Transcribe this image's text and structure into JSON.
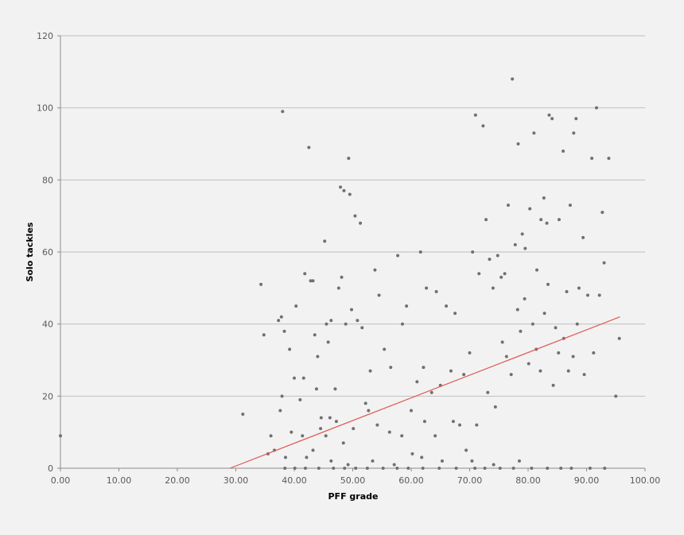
{
  "chart_data": {
    "type": "scatter",
    "title": "",
    "xlabel": "PFF grade",
    "ylabel": "Solo tackles",
    "xlim": [
      0,
      100
    ],
    "ylim": [
      0,
      120
    ],
    "x_ticks": [
      "0.00",
      "10.00",
      "20.00",
      "30.00",
      "40.00",
      "50.00",
      "60.00",
      "70.00",
      "80.00",
      "90.00",
      "100.00"
    ],
    "y_ticks": [
      "0",
      "20",
      "40",
      "60",
      "80",
      "100",
      "120"
    ],
    "grid": {
      "horizontal": true,
      "vertical": false
    },
    "colors": {
      "points": "#707070",
      "trendline": "#e05555",
      "grid": "#bfbfbf",
      "background": "#f2f2f2"
    },
    "trendline": {
      "type": "linear",
      "x": [
        29.0,
        95.7
      ],
      "y": [
        0,
        42
      ]
    },
    "series": [
      {
        "points": [
          [
            0,
            9
          ],
          [
            31.2,
            15
          ],
          [
            34.3,
            51
          ],
          [
            34.8,
            37
          ],
          [
            35.5,
            4
          ],
          [
            36,
            9
          ],
          [
            36.6,
            5
          ],
          [
            37.3,
            41
          ],
          [
            37.8,
            42
          ],
          [
            38,
            99
          ],
          [
            37.6,
            16
          ],
          [
            37.9,
            20
          ],
          [
            38.3,
            38
          ],
          [
            38.5,
            3
          ],
          [
            39.2,
            33
          ],
          [
            39.5,
            10
          ],
          [
            40,
            25
          ],
          [
            40.3,
            45
          ],
          [
            41,
            19
          ],
          [
            41.4,
            9
          ],
          [
            41.6,
            25
          ],
          [
            41.8,
            54
          ],
          [
            42.5,
            89
          ],
          [
            42.8,
            52
          ],
          [
            43.2,
            52
          ],
          [
            43.5,
            37
          ],
          [
            43.8,
            22
          ],
          [
            44,
            31
          ],
          [
            44.5,
            11
          ],
          [
            45.2,
            63
          ],
          [
            45.5,
            40
          ],
          [
            45.8,
            35
          ],
          [
            46.3,
            41
          ],
          [
            47,
            22
          ],
          [
            47.6,
            50
          ],
          [
            47.9,
            78
          ],
          [
            48.1,
            53
          ],
          [
            48.5,
            77
          ],
          [
            48.8,
            40
          ],
          [
            49.3,
            86
          ],
          [
            49.5,
            76
          ],
          [
            49.8,
            44
          ],
          [
            50.4,
            70
          ],
          [
            50.8,
            41
          ],
          [
            51.3,
            68
          ],
          [
            51.6,
            39
          ],
          [
            52.2,
            18
          ],
          [
            53,
            27
          ],
          [
            53.8,
            55
          ],
          [
            54.5,
            48
          ],
          [
            55.4,
            33
          ],
          [
            56.5,
            28
          ],
          [
            57.7,
            59
          ],
          [
            58.5,
            40
          ],
          [
            59.2,
            45
          ],
          [
            60,
            16
          ],
          [
            61,
            24
          ],
          [
            61.6,
            60
          ],
          [
            62.1,
            28
          ],
          [
            62.6,
            50
          ],
          [
            63.5,
            21
          ],
          [
            64.3,
            49
          ],
          [
            65,
            23
          ],
          [
            66,
            45
          ],
          [
            66.8,
            27
          ],
          [
            67.5,
            43
          ],
          [
            68.3,
            12
          ],
          [
            69,
            26
          ],
          [
            70,
            32
          ],
          [
            70.5,
            60
          ],
          [
            71,
            98
          ],
          [
            71.6,
            54
          ],
          [
            72.3,
            95
          ],
          [
            72.8,
            69
          ],
          [
            73.4,
            58
          ],
          [
            74,
            50
          ],
          [
            74.8,
            59
          ],
          [
            75.4,
            53
          ],
          [
            76,
            54
          ],
          [
            76.6,
            73
          ],
          [
            77.3,
            108
          ],
          [
            77.8,
            62
          ],
          [
            78.3,
            90
          ],
          [
            79,
            65
          ],
          [
            79.5,
            61
          ],
          [
            80.3,
            72
          ],
          [
            81,
            93
          ],
          [
            81.5,
            55
          ],
          [
            82.2,
            69
          ],
          [
            82.7,
            75
          ],
          [
            83.2,
            68
          ],
          [
            83.6,
            98
          ],
          [
            84.1,
            97
          ],
          [
            84.7,
            39
          ],
          [
            85.3,
            69
          ],
          [
            86,
            88
          ],
          [
            86.6,
            49
          ],
          [
            87.2,
            73
          ],
          [
            87.8,
            93
          ],
          [
            88.2,
            97
          ],
          [
            88.7,
            50
          ],
          [
            89.4,
            64
          ],
          [
            90.2,
            48
          ],
          [
            90.9,
            86
          ],
          [
            91.2,
            32
          ],
          [
            91.7,
            100
          ],
          [
            92.2,
            48
          ],
          [
            92.7,
            71
          ],
          [
            93,
            57
          ],
          [
            93.8,
            86
          ],
          [
            95,
            20
          ],
          [
            95.6,
            36
          ],
          [
            43.2,
            5
          ],
          [
            44.6,
            14
          ],
          [
            45.4,
            9
          ],
          [
            46.1,
            14
          ],
          [
            47.2,
            13
          ],
          [
            48.4,
            7
          ],
          [
            50.1,
            11
          ],
          [
            52.7,
            16
          ],
          [
            54.2,
            12
          ],
          [
            56.3,
            10
          ],
          [
            58.4,
            9
          ],
          [
            60.2,
            4
          ],
          [
            62.3,
            13
          ],
          [
            64.1,
            9
          ],
          [
            67.2,
            13
          ],
          [
            69.4,
            5
          ],
          [
            71.2,
            12
          ],
          [
            73.1,
            21
          ],
          [
            74.4,
            17
          ],
          [
            75.6,
            35
          ],
          [
            76.3,
            31
          ],
          [
            77.1,
            26
          ],
          [
            78.2,
            44
          ],
          [
            78.7,
            38
          ],
          [
            79.4,
            47
          ],
          [
            80.1,
            29
          ],
          [
            80.8,
            40
          ],
          [
            81.4,
            33
          ],
          [
            82.1,
            27
          ],
          [
            82.8,
            43
          ],
          [
            83.4,
            51
          ],
          [
            84.3,
            23
          ],
          [
            85.2,
            32
          ],
          [
            86.1,
            36
          ],
          [
            86.9,
            27
          ],
          [
            87.7,
            31
          ],
          [
            88.4,
            40
          ],
          [
            89.6,
            26
          ],
          [
            42.1,
            3
          ],
          [
            46.3,
            2
          ],
          [
            49.2,
            1
          ],
          [
            53.4,
            2
          ],
          [
            57.1,
            1
          ],
          [
            61.8,
            3
          ],
          [
            65.3,
            2
          ],
          [
            70.4,
            2
          ],
          [
            74.1,
            1
          ],
          [
            78.5,
            2
          ],
          [
            38.4,
            0
          ],
          [
            40.1,
            0
          ],
          [
            41.9,
            0
          ],
          [
            44.2,
            0
          ],
          [
            46.7,
            0
          ],
          [
            48.6,
            0
          ],
          [
            50.5,
            0
          ],
          [
            52.5,
            0
          ],
          [
            55.2,
            0
          ],
          [
            57.6,
            0
          ],
          [
            59.5,
            0
          ],
          [
            62,
            0
          ],
          [
            64.8,
            0
          ],
          [
            67.7,
            0
          ],
          [
            70.9,
            0
          ],
          [
            72.6,
            0
          ],
          [
            75.2,
            0
          ],
          [
            77.5,
            0
          ],
          [
            80.6,
            0
          ],
          [
            83.3,
            0
          ],
          [
            85.6,
            0
          ],
          [
            87.4,
            0
          ],
          [
            90.6,
            0
          ],
          [
            93.1,
            0
          ]
        ]
      }
    ]
  }
}
